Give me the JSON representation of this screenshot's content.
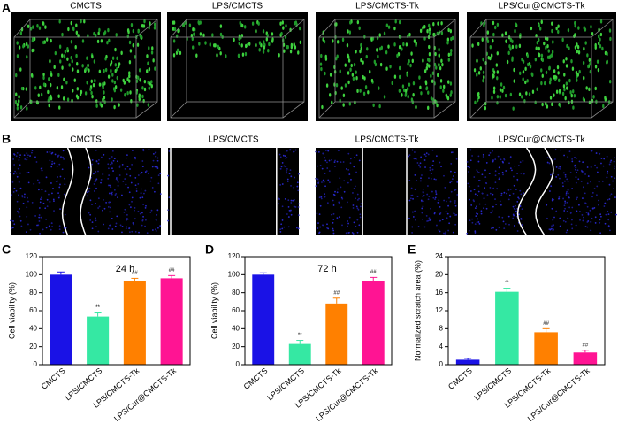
{
  "panel_labels": [
    "A",
    "B",
    "C",
    "D",
    "E"
  ],
  "panel_a": {
    "titles": [
      "CMCTS",
      "LPS/CMCTS",
      "LPS/CMCTS-Tk",
      "LPS/Cur@CMCTS-Tk"
    ]
  },
  "panel_b": {
    "titles": [
      "CMCTS",
      "LPS/CMCTS",
      "LPS/CMCTS-Tk",
      "LPS/Cur@CMCTS-Tk"
    ]
  },
  "chart_data": [
    {
      "type": "bar",
      "title": "24 h",
      "y_label": "Cell viability (%)",
      "categories": [
        "CMCTS",
        "LPS/CMCTS",
        "LPS/CMCTS-Tk",
        "LPS/Cur@CMCTS-Tk"
      ],
      "values": [
        100,
        53.5,
        93,
        96
      ],
      "errors": [
        3,
        4,
        3,
        3
      ],
      "colors": [
        "#1a12e6",
        "#35e8a3",
        "#ff8000",
        "#ff1493"
      ],
      "markers": [
        null,
        "**",
        "##",
        "##"
      ],
      "ylim": [
        0,
        120
      ],
      "yticks": [
        0,
        20,
        40,
        60,
        80,
        100,
        120
      ]
    },
    {
      "type": "bar",
      "title": "72 h",
      "y_label": "Cell viability (%)",
      "categories": [
        "CMCTS",
        "LPS/CMCTS",
        "LPS/CMCTS-Tk",
        "LPS/Cur@CMCTS-Tk"
      ],
      "values": [
        100,
        23,
        68,
        93
      ],
      "errors": [
        2,
        4,
        6,
        4
      ],
      "colors": [
        "#1a12e6",
        "#35e8a3",
        "#ff8000",
        "#ff1493"
      ],
      "markers": [
        null,
        "**",
        "##",
        "##"
      ],
      "ylim": [
        0,
        120
      ],
      "yticks": [
        0,
        20,
        40,
        60,
        80,
        100,
        120
      ]
    },
    {
      "type": "bar",
      "y_label": "Normalized scratch area (%)",
      "categories": [
        "CMCTS",
        "LPS/CMCTS",
        "LPS/CMCTS-Tk",
        "LPS/Cur@CMCTS-Tk"
      ],
      "values": [
        1.1,
        16.2,
        7.2,
        2.7
      ],
      "errors": [
        0.3,
        0.8,
        0.8,
        0.5
      ],
      "colors": [
        "#1a12e6",
        "#35e8a3",
        "#ff8000",
        "#ff1493"
      ],
      "markers": [
        null,
        "**",
        "##",
        "##"
      ],
      "ylim": [
        0,
        24
      ],
      "yticks": [
        0,
        4,
        8,
        12,
        16,
        20,
        24
      ]
    }
  ]
}
